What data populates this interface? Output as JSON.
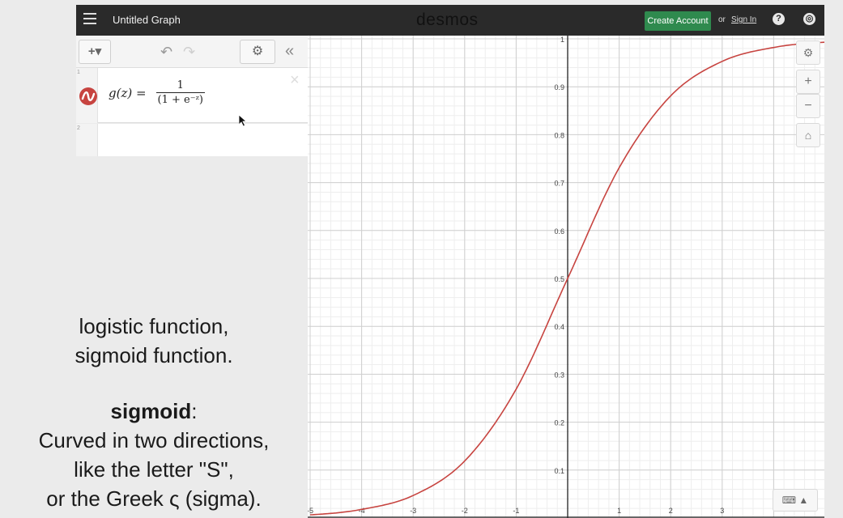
{
  "topbar": {
    "graph_title": "Untitled Graph",
    "brand": "desmos",
    "create_account": "Create Account",
    "or": "or",
    "sign_in": "Sign In",
    "help_symbol": "?",
    "globe_symbol": "◎"
  },
  "toolbar": {
    "add_label": "+▾",
    "undo_symbol": "↶",
    "redo_symbol": "↷",
    "settings_symbol": "⚙",
    "collapse_symbol": "«"
  },
  "expressions": [
    {
      "index": "1",
      "lhs": "g(z) =",
      "numerator": "1",
      "denominator": "(1 + e⁻ᶻ)",
      "color": "#c74440"
    },
    {
      "index": "2"
    }
  ],
  "graph_controls": {
    "wrench_symbol": "🔧",
    "zoom_in": "+",
    "zoom_out": "−",
    "home_symbol": "⌂",
    "keyboard": "⌨ ▲"
  },
  "caption": {
    "line1": "logistic function,",
    "line2": "sigmoid function.",
    "term": "sigmoid",
    "term_suffix": ":",
    "line3": "Curved in two directions,",
    "line4": "like the letter \"S\",",
    "line5": "or the Greek ς (sigma)."
  },
  "chart_data": {
    "type": "line",
    "function": "g(z) = 1/(1+e^(-z))",
    "xlim": [
      -5,
      5
    ],
    "ylim": [
      0,
      1
    ],
    "x_ticks": [
      "-5",
      "-4",
      "-3",
      "-2",
      "-1",
      "1",
      "2",
      "3"
    ],
    "y_ticks": [
      "0.1",
      "0.2",
      "0.3",
      "0.4",
      "0.5",
      "0.6",
      "0.7",
      "0.8",
      "0.9",
      "1"
    ],
    "grid": true,
    "series": [
      {
        "color": "#c74440",
        "x": [
          -5,
          -4,
          -3,
          -2,
          -1,
          0,
          1,
          2,
          3,
          4,
          5
        ],
        "y": [
          0.0067,
          0.018,
          0.047,
          0.119,
          0.269,
          0.5,
          0.731,
          0.881,
          0.953,
          0.982,
          0.993
        ]
      }
    ]
  }
}
